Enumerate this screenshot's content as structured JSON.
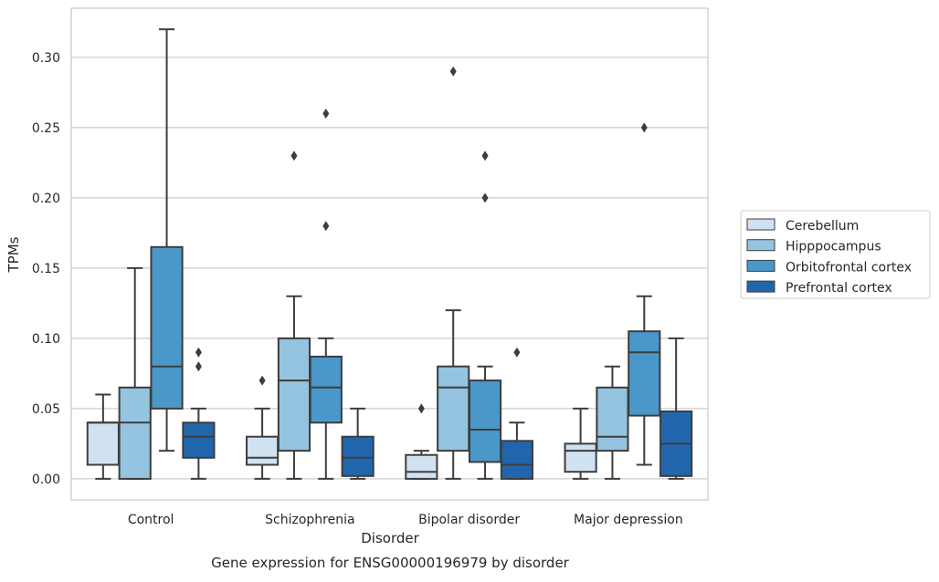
{
  "chart_data": {
    "type": "boxplot",
    "title": "Gene expression for ENSG00000196979 by disorder",
    "xlabel": "Disorder",
    "ylabel": "TPMs",
    "ylim": [
      -0.015,
      0.335
    ],
    "yticks": [
      0.0,
      0.05,
      0.1,
      0.15,
      0.2,
      0.25,
      0.3
    ],
    "ytick_labels": [
      "0.00",
      "0.05",
      "0.10",
      "0.15",
      "0.20",
      "0.25",
      "0.30"
    ],
    "grid": "horizontal",
    "legend_position": "right",
    "categories": [
      "Control",
      "Schizophrenia",
      "Bipolar disorder",
      "Major depression"
    ],
    "series": [
      {
        "name": "Cerebellum",
        "color": "#d0e1f2",
        "boxes": [
          {
            "whisker_low": 0.0,
            "q1": 0.01,
            "median": 0.04,
            "q3": 0.04,
            "whisker_high": 0.06,
            "outliers": []
          },
          {
            "whisker_low": 0.0,
            "q1": 0.01,
            "median": 0.015,
            "q3": 0.03,
            "whisker_high": 0.05,
            "outliers": [
              0.07
            ]
          },
          {
            "whisker_low": 0.0,
            "q1": 0.0,
            "median": 0.005,
            "q3": 0.017,
            "whisker_high": 0.02,
            "outliers": [
              0.05
            ]
          },
          {
            "whisker_low": 0.0,
            "q1": 0.005,
            "median": 0.02,
            "q3": 0.025,
            "whisker_high": 0.05,
            "outliers": []
          }
        ]
      },
      {
        "name": "Hipppocampus",
        "color": "#94c4df",
        "boxes": [
          {
            "whisker_low": 0.0,
            "q1": 0.0,
            "median": 0.04,
            "q3": 0.065,
            "whisker_high": 0.15,
            "outliers": []
          },
          {
            "whisker_low": 0.0,
            "q1": 0.02,
            "median": 0.07,
            "q3": 0.1,
            "whisker_high": 0.13,
            "outliers": [
              0.23
            ]
          },
          {
            "whisker_low": 0.0,
            "q1": 0.02,
            "median": 0.065,
            "q3": 0.08,
            "whisker_high": 0.12,
            "outliers": [
              0.29
            ]
          },
          {
            "whisker_low": 0.0,
            "q1": 0.02,
            "median": 0.03,
            "q3": 0.065,
            "whisker_high": 0.08,
            "outliers": []
          }
        ]
      },
      {
        "name": "Orbitofrontal cortex",
        "color": "#4a98c9",
        "boxes": [
          {
            "whisker_low": 0.02,
            "q1": 0.05,
            "median": 0.08,
            "q3": 0.165,
            "whisker_high": 0.32,
            "outliers": []
          },
          {
            "whisker_low": 0.0,
            "q1": 0.04,
            "median": 0.065,
            "q3": 0.087,
            "whisker_high": 0.1,
            "outliers": [
              0.26,
              0.18
            ]
          },
          {
            "whisker_low": 0.0,
            "q1": 0.012,
            "median": 0.035,
            "q3": 0.07,
            "whisker_high": 0.08,
            "outliers": [
              0.23,
              0.2
            ]
          },
          {
            "whisker_low": 0.01,
            "q1": 0.045,
            "median": 0.09,
            "q3": 0.105,
            "whisker_high": 0.13,
            "outliers": [
              0.25
            ]
          }
        ]
      },
      {
        "name": "Prefrontal cortex",
        "color": "#2166ac",
        "boxes": [
          {
            "whisker_low": 0.0,
            "q1": 0.015,
            "median": 0.03,
            "q3": 0.04,
            "whisker_high": 0.05,
            "outliers": [
              0.09,
              0.08
            ]
          },
          {
            "whisker_low": 0.0,
            "q1": 0.002,
            "median": 0.015,
            "q3": 0.03,
            "whisker_high": 0.05,
            "outliers": []
          },
          {
            "whisker_low": 0.0,
            "q1": 0.0,
            "median": 0.01,
            "q3": 0.027,
            "whisker_high": 0.04,
            "outliers": [
              0.09
            ]
          },
          {
            "whisker_low": 0.0,
            "q1": 0.002,
            "median": 0.025,
            "q3": 0.048,
            "whisker_high": 0.1,
            "outliers": []
          }
        ]
      }
    ]
  }
}
